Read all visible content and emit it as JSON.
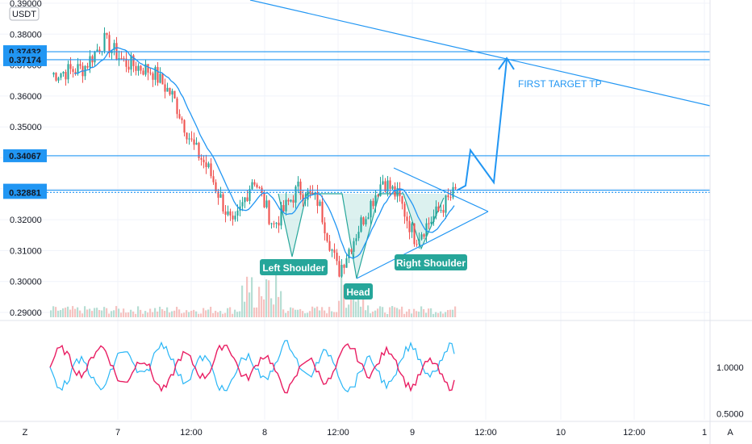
{
  "chart_data": [
    {
      "type": "candlestick",
      "title": "",
      "currency": "USDT",
      "price_scale": {
        "ticks": [
          "0.39000",
          "0.38000",
          "0.37000",
          "0.36000",
          "0.35000",
          "0.34000",
          "0.33000",
          "0.32000",
          "0.31000",
          "0.30000",
          "0.29000"
        ],
        "range": [
          0.2865,
          0.3905
        ]
      },
      "price_labels": [
        {
          "value": "0.37432",
          "color": "#2196f3"
        },
        {
          "value": "0.37174",
          "color": "#2196f3"
        },
        {
          "value": "0.34067",
          "color": "#2196f3"
        },
        {
          "value": "0.32953",
          "color": "#2196f3"
        },
        {
          "value": "0.32881",
          "color": "#2196f3"
        }
      ],
      "horizontal_levels": [
        0.37432,
        0.37174,
        0.34067,
        0.32953,
        0.32881
      ],
      "x_ticks": [
        "7",
        "12:00",
        "8",
        "12:00",
        "9",
        "12:00",
        "10",
        "12:00",
        "1"
      ],
      "annotations": [
        {
          "text": "Left Shoulder",
          "color": "#26a69a"
        },
        {
          "text": "Head",
          "color": "#26a69a"
        },
        {
          "text": "Right Shoulder",
          "color": "#26a69a"
        },
        {
          "text": "FIRST TARGET TP",
          "color": "#2196f3"
        }
      ],
      "series": [
        {
          "name": "price",
          "key_points": [
            {
              "t": 0.0,
              "p": 0.367
            },
            {
              "t": 0.08,
              "p": 0.369
            },
            {
              "t": 0.13,
              "p": 0.378
            },
            {
              "t": 0.18,
              "p": 0.371
            },
            {
              "t": 0.25,
              "p": 0.368
            },
            {
              "t": 0.3,
              "p": 0.36
            },
            {
              "t": 0.35,
              "p": 0.344
            },
            {
              "t": 0.39,
              "p": 0.336
            },
            {
              "t": 0.45,
              "p": 0.317
            },
            {
              "t": 0.5,
              "p": 0.334
            },
            {
              "t": 0.55,
              "p": 0.318
            },
            {
              "t": 0.61,
              "p": 0.33
            },
            {
              "t": 0.66,
              "p": 0.326
            },
            {
              "t": 0.71,
              "p": 0.303
            },
            {
              "t": 0.77,
              "p": 0.32
            },
            {
              "t": 0.82,
              "p": 0.333
            },
            {
              "t": 0.86,
              "p": 0.327
            },
            {
              "t": 0.9,
              "p": 0.314
            },
            {
              "t": 0.94,
              "p": 0.32
            },
            {
              "t": 1.0,
              "p": 0.329
            }
          ]
        },
        {
          "name": "moving_average",
          "color": "#2196f3"
        }
      ],
      "colors": {
        "up": "#26a69a",
        "down": "#ef5350",
        "line": "#2196f3",
        "grid": "#f0f3fa"
      }
    },
    {
      "type": "line",
      "title": "",
      "y_ticks": [
        "1.0000",
        "0.5000"
      ],
      "series": [
        {
          "color": "#e91e63"
        },
        {
          "color": "#29b6f6"
        }
      ]
    }
  ],
  "toolbar": {
    "left_button": "Z",
    "right_button": "A"
  }
}
